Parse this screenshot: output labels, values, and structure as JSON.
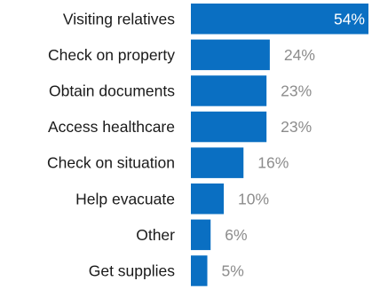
{
  "chart_data": {
    "type": "bar",
    "orientation": "horizontal",
    "title": "",
    "xlabel": "",
    "ylabel": "",
    "xlim": [
      0,
      54
    ],
    "grid": false,
    "legend": "none",
    "bar_color": "#0a6fc2",
    "categories": [
      "Visiting relatives",
      "Check on property",
      "Obtain documents",
      "Access healthcare",
      "Check on situation",
      "Help evacuate",
      "Other",
      "Get supplies"
    ],
    "values": [
      54,
      24,
      23,
      23,
      16,
      10,
      6,
      5
    ],
    "value_labels": [
      "54%",
      "24%",
      "23%",
      "23%",
      "16%",
      "10%",
      "6%",
      "5%"
    ]
  }
}
